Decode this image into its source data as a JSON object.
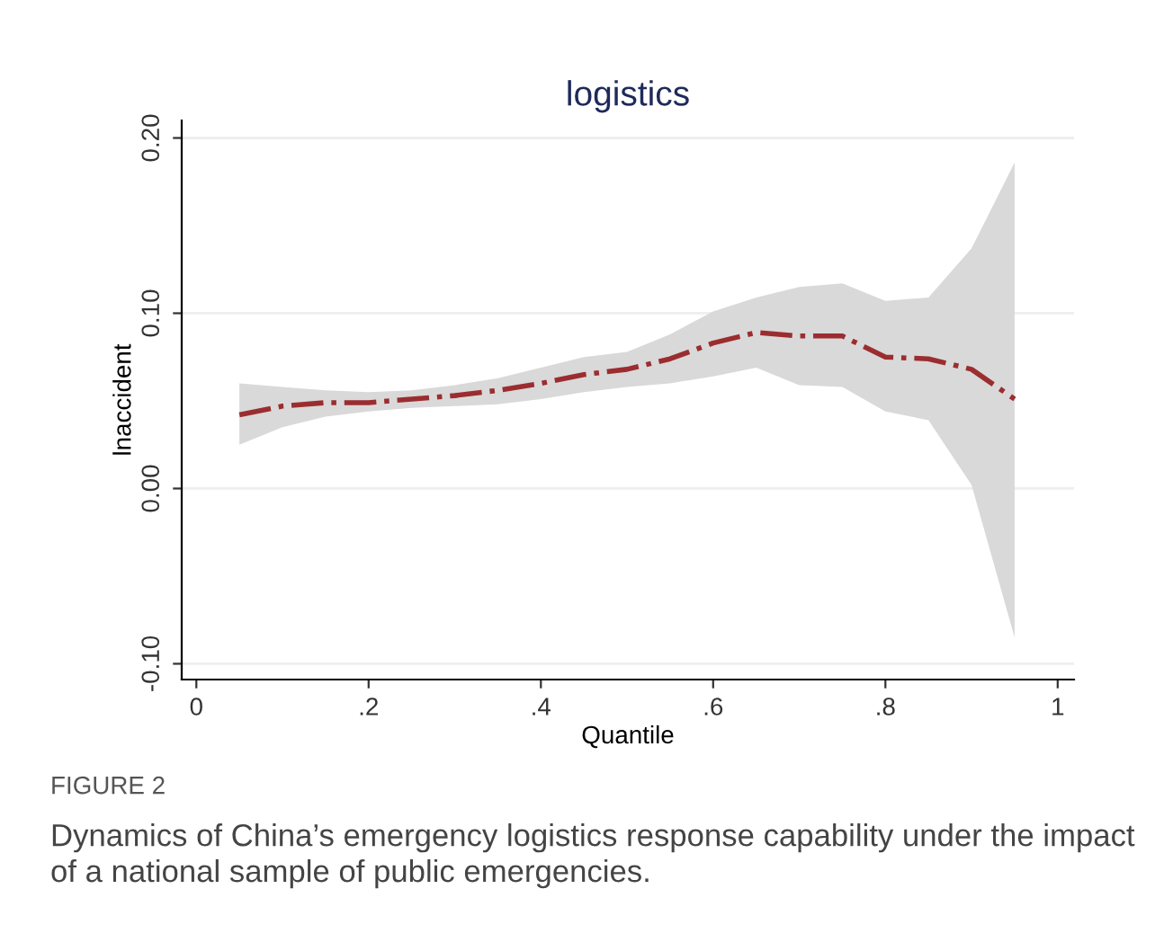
{
  "chart_data": {
    "type": "line",
    "title": "logistics",
    "xlabel": "Quantile",
    "ylabel": "lnaccident",
    "x": [
      0.05,
      0.1,
      0.15,
      0.2,
      0.25,
      0.3,
      0.35,
      0.4,
      0.45,
      0.5,
      0.55,
      0.6,
      0.65,
      0.7,
      0.75,
      0.8,
      0.85,
      0.9,
      0.95
    ],
    "series": [
      {
        "color": "#9b2d30",
        "line_style": "dashdot",
        "values": [
          0.042,
          0.047,
          0.049,
          0.049,
          0.051,
          0.053,
          0.056,
          0.06,
          0.065,
          0.068,
          0.074,
          0.083,
          0.089,
          0.087,
          0.087,
          0.075,
          0.074,
          0.068,
          0.051
        ],
        "lower": [
          0.025,
          0.035,
          0.041,
          0.044,
          0.046,
          0.047,
          0.048,
          0.051,
          0.055,
          0.058,
          0.06,
          0.064,
          0.069,
          0.059,
          0.058,
          0.044,
          0.039,
          0.002,
          -0.085
        ],
        "upper": [
          0.06,
          0.058,
          0.056,
          0.055,
          0.056,
          0.059,
          0.063,
          0.069,
          0.075,
          0.078,
          0.088,
          0.101,
          0.109,
          0.115,
          0.117,
          0.107,
          0.109,
          0.137,
          0.186
        ]
      }
    ],
    "xlim": [
      -0.017,
      1.019
    ],
    "ylim": [
      -0.109,
      0.21
    ],
    "xticks": [
      0,
      {
        "value": 0.2,
        "label": ".2"
      },
      {
        "value": 0.4,
        "label": ".4"
      },
      {
        "value": 0.6,
        "label": ".6"
      },
      {
        "value": 0.8,
        "label": ".8"
      },
      1
    ],
    "yticks": [
      {
        "value": -0.1,
        "label": "-0.10"
      },
      {
        "value": 0,
        "label": "0.00"
      },
      {
        "value": 0.1,
        "label": "0.10"
      },
      {
        "value": 0.2,
        "label": "0.20"
      }
    ],
    "grid": "y",
    "annotations": [
      "FIGURE 2",
      "Dynamics of China’s emergency logistics response capability under the impact of a national sample of public emergencies."
    ]
  }
}
